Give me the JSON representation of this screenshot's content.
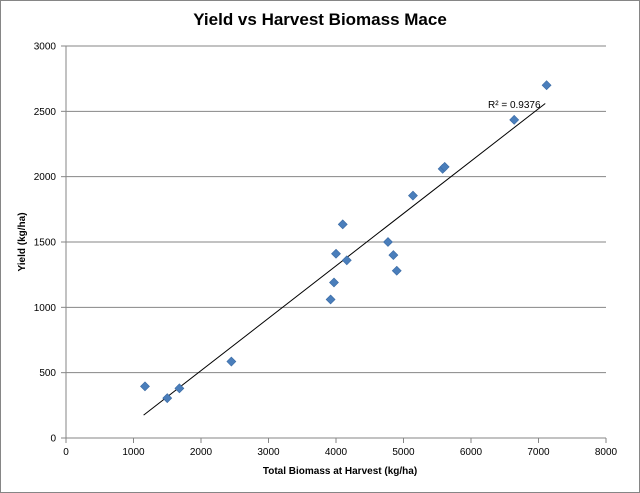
{
  "chart_data": {
    "type": "scatter",
    "title": "Yield vs Harvest Biomass Mace",
    "xlabel": "Total Biomass at Harvest (kg/ha)",
    "ylabel": "Yield (kg/ha)",
    "xlim": [
      0,
      8000
    ],
    "ylim": [
      0,
      3000
    ],
    "x_ticks": [
      "0",
      "1000",
      "2000",
      "3000",
      "4000",
      "5000",
      "6000",
      "7000",
      "8000"
    ],
    "y_ticks": [
      "0",
      "500",
      "1000",
      "1500",
      "2000",
      "2500",
      "3000"
    ],
    "grid": "horizontal",
    "marker_color": "#4a7ebb",
    "trendline_color": "#000000",
    "points": [
      {
        "x": 1170,
        "y": 395
      },
      {
        "x": 1500,
        "y": 305
      },
      {
        "x": 1680,
        "y": 380
      },
      {
        "x": 2450,
        "y": 585
      },
      {
        "x": 3920,
        "y": 1060
      },
      {
        "x": 3970,
        "y": 1190
      },
      {
        "x": 4000,
        "y": 1410
      },
      {
        "x": 4100,
        "y": 1635
      },
      {
        "x": 4160,
        "y": 1360
      },
      {
        "x": 4770,
        "y": 1500
      },
      {
        "x": 4850,
        "y": 1400
      },
      {
        "x": 4900,
        "y": 1280
      },
      {
        "x": 5140,
        "y": 1855
      },
      {
        "x": 5580,
        "y": 2060
      },
      {
        "x": 5610,
        "y": 2075
      },
      {
        "x": 6640,
        "y": 2435
      },
      {
        "x": 7120,
        "y": 2700
      }
    ],
    "trendline": {
      "x": [
        1150,
        7100
      ],
      "y": [
        175,
        2560
      ]
    },
    "r_squared_label": "R² = 0.9376"
  }
}
